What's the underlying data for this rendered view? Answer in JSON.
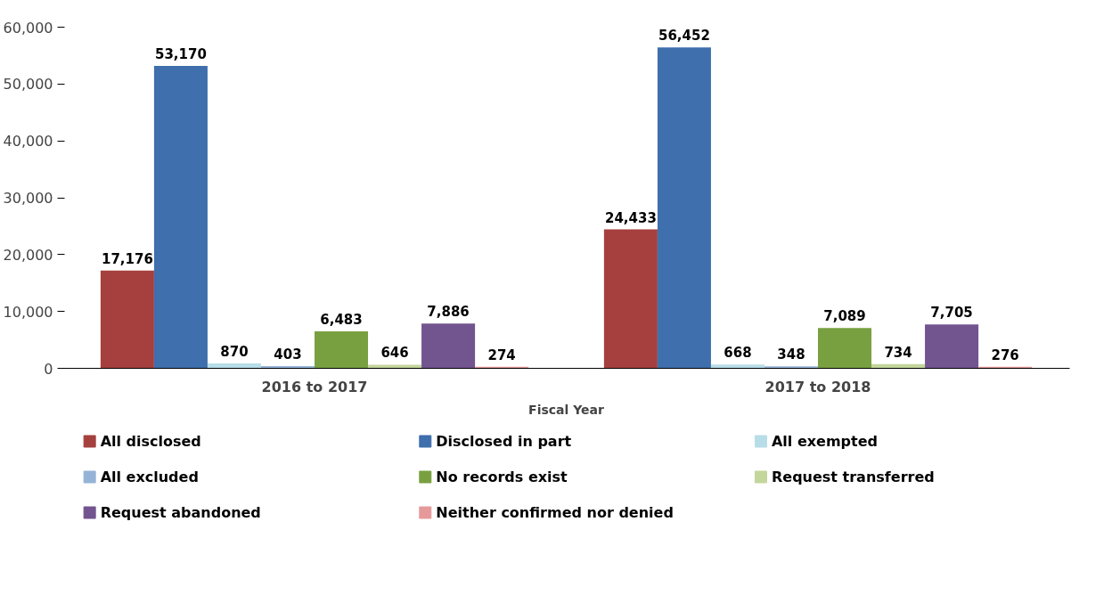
{
  "chart_data": {
    "type": "bar",
    "xlabel": "Fiscal Year",
    "categories": [
      "2016 to 2017",
      "2017 to 2018"
    ],
    "series": [
      {
        "name": "All disclosed",
        "color": "#a5403e",
        "values": [
          17176,
          24433
        ],
        "value_labels": [
          "17,176",
          "24,433"
        ]
      },
      {
        "name": "Disclosed in part",
        "color": "#3f6fac",
        "values": [
          53170,
          56452
        ],
        "value_labels": [
          "53,170",
          "56,452"
        ]
      },
      {
        "name": "All exempted",
        "color": "#b7dde8",
        "values": [
          870,
          668
        ],
        "value_labels": [
          "870",
          "668"
        ]
      },
      {
        "name": "All excluded",
        "color": "#95b3d7",
        "values": [
          403,
          348
        ],
        "value_labels": [
          "403",
          "348"
        ]
      },
      {
        "name": "No records exist",
        "color": "#79a040",
        "values": [
          6483,
          7089
        ],
        "value_labels": [
          "6,483",
          "7,089"
        ]
      },
      {
        "name": "Request transferred",
        "color": "#c3d69b",
        "values": [
          646,
          734
        ],
        "value_labels": [
          "646",
          "734"
        ]
      },
      {
        "name": "Request abandoned",
        "color": "#72548f",
        "values": [
          7886,
          7705
        ],
        "value_labels": [
          "7,886",
          "7,705"
        ]
      },
      {
        "name": "Neither confirmed nor denied",
        "color": "#e6999a",
        "values": [
          274,
          276
        ],
        "value_labels": [
          "274",
          "276"
        ]
      }
    ],
    "ylim": [
      0,
      60000
    ],
    "yticks": [
      0,
      {
        "value": 10000,
        "label": "10,000"
      },
      {
        "value": 20000,
        "label": "20,000"
      },
      {
        "value": 30000,
        "label": "30,000"
      },
      {
        "value": 40000,
        "label": "40,000"
      },
      {
        "value": 50000,
        "label": "50,000"
      },
      {
        "value": 60000,
        "label": "60,000"
      }
    ],
    "legend": "bottom"
  }
}
